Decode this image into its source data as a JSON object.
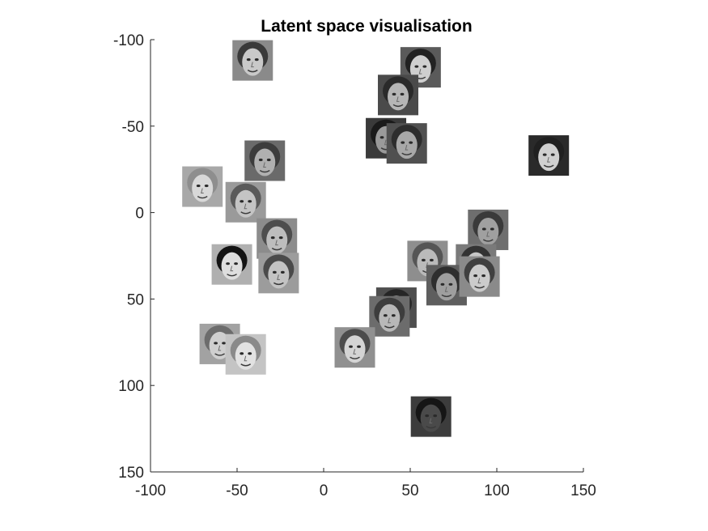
{
  "chart_data": {
    "type": "scatter",
    "title": "Latent space visualisation",
    "xlabel": "",
    "ylabel": "",
    "xlim": [
      -100,
      150
    ],
    "ylim": [
      -100,
      150
    ],
    "y_reversed": true,
    "grid": false,
    "x_ticks": [
      -100,
      -50,
      0,
      50,
      100,
      150
    ],
    "y_ticks": [
      -100,
      -50,
      0,
      50,
      100,
      150
    ],
    "marker": "grayscale face thumbnail",
    "points": [
      {
        "x": -41,
        "y": -88,
        "shade": "#8a8a8a",
        "skin": "#c9c9c9",
        "hair": "#3a3a3a"
      },
      {
        "x": 56,
        "y": -84,
        "shade": "#5a5a5a",
        "skin": "#cfcfcf",
        "hair": "#222222"
      },
      {
        "x": 43,
        "y": -68,
        "shade": "#4a4a4a",
        "skin": "#b5b5b5",
        "hair": "#2a2a2a"
      },
      {
        "x": 36,
        "y": -43,
        "shade": "#3a3a3a",
        "skin": "#9a9a9a",
        "hair": "#1a1a1a"
      },
      {
        "x": 48,
        "y": -40,
        "shade": "#505050",
        "skin": "#a8a8a8",
        "hair": "#2d2d2d"
      },
      {
        "x": 130,
        "y": -33,
        "shade": "#2a2a2a",
        "skin": "#d0d0d0",
        "hair": "#202020"
      },
      {
        "x": -34,
        "y": -30,
        "shade": "#6a6a6a",
        "skin": "#b0b0b0",
        "hair": "#3c3c3c"
      },
      {
        "x": -70,
        "y": -15,
        "shade": "#a8a8a8",
        "skin": "#d8d8d8",
        "hair": "#8e8e8e"
      },
      {
        "x": -45,
        "y": -6,
        "shade": "#9a9a9a",
        "skin": "#c4c4c4",
        "hair": "#5a5a5a"
      },
      {
        "x": 95,
        "y": 10,
        "shade": "#6e6e6e",
        "skin": "#a0a0a0",
        "hair": "#3a3a3a"
      },
      {
        "x": -27,
        "y": 15,
        "shade": "#8c8c8c",
        "skin": "#bdbdbd",
        "hair": "#4d4d4d"
      },
      {
        "x": -53,
        "y": 30,
        "shade": "#b0b0b0",
        "skin": "#dedede",
        "hair": "#141414"
      },
      {
        "x": -26,
        "y": 35,
        "shade": "#9c9c9c",
        "skin": "#c3c3c3",
        "hair": "#4a4a4a"
      },
      {
        "x": 60,
        "y": 28,
        "shade": "#8e8e8e",
        "skin": "#bababa",
        "hair": "#555555"
      },
      {
        "x": 88,
        "y": 30,
        "shade": "#7a7a7a",
        "skin": "#c7c7c7",
        "hair": "#333333"
      },
      {
        "x": 71,
        "y": 42,
        "shade": "#5e5e5e",
        "skin": "#9e9e9e",
        "hair": "#2e2e2e"
      },
      {
        "x": 90,
        "y": 37,
        "shade": "#8a8a8a",
        "skin": "#cbcbcb",
        "hair": "#404040"
      },
      {
        "x": 42,
        "y": 55,
        "shade": "#4e4e4e",
        "skin": "#a4a4a4",
        "hair": "#262626"
      },
      {
        "x": 38,
        "y": 60,
        "shade": "#6c6c6c",
        "skin": "#b8b8b8",
        "hair": "#3d3d3d"
      },
      {
        "x": -60,
        "y": 76,
        "shade": "#a2a2a2",
        "skin": "#cfcfcf",
        "hair": "#6c6c6c"
      },
      {
        "x": -45,
        "y": 82,
        "shade": "#c4c4c4",
        "skin": "#e2e2e2",
        "hair": "#8a8a8a"
      },
      {
        "x": 18,
        "y": 78,
        "shade": "#909090",
        "skin": "#d4d4d4",
        "hair": "#4c4c4c"
      },
      {
        "x": 62,
        "y": 118,
        "shade": "#3c3c3c",
        "skin": "#4a4a4a",
        "hair": "#151515"
      }
    ]
  }
}
